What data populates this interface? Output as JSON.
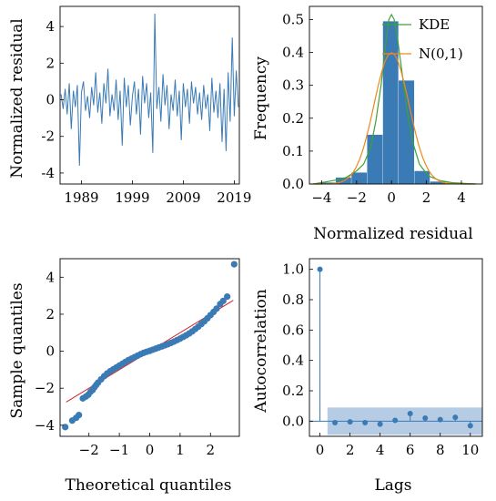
{
  "chart_data": [
    {
      "type": "line",
      "panel": "residual-timeseries",
      "ylabel": "Normalized residual",
      "xlabel": "",
      "xticks": [
        "1989",
        "1999",
        "2009",
        "2019"
      ],
      "xtick_values": [
        1989,
        1999,
        2009,
        2019
      ],
      "xlim": [
        1984.8,
        2020
      ],
      "yticks": [
        4,
        2,
        0,
        -2,
        -4
      ],
      "ylim": [
        -4.6,
        5.1
      ],
      "color": "#3a7ab5",
      "series": [
        {
          "values": [
            [
              1985.0,
              0.3
            ],
            [
              1985.4,
              -0.5
            ],
            [
              1985.8,
              0.6
            ],
            [
              1986.2,
              -0.8
            ],
            [
              1986.6,
              0.9
            ],
            [
              1987.0,
              -1.6
            ],
            [
              1987.4,
              0.5
            ],
            [
              1987.8,
              -0.4
            ],
            [
              1988.2,
              0.8
            ],
            [
              1988.6,
              -3.6
            ],
            [
              1989.0,
              0.4
            ],
            [
              1989.4,
              1.0
            ],
            [
              1989.8,
              -0.6
            ],
            [
              1990.2,
              0.2
            ],
            [
              1990.6,
              -1.0
            ],
            [
              1991.0,
              0.7
            ],
            [
              1991.4,
              -0.3
            ],
            [
              1991.8,
              1.5
            ],
            [
              1992.2,
              -0.7
            ],
            [
              1992.6,
              0.4
            ],
            [
              1993.0,
              -1.3
            ],
            [
              1993.4,
              0.9
            ],
            [
              1993.8,
              -0.2
            ],
            [
              1994.2,
              1.7
            ],
            [
              1994.6,
              -0.9
            ],
            [
              1995.0,
              0.3
            ],
            [
              1995.4,
              -0.6
            ],
            [
              1995.8,
              1.1
            ],
            [
              1996.2,
              -1.1
            ],
            [
              1996.6,
              0.5
            ],
            [
              1997.0,
              -2.5
            ],
            [
              1997.4,
              1.2
            ],
            [
              1997.8,
              -0.4
            ],
            [
              1998.2,
              0.8
            ],
            [
              1998.6,
              -1.4
            ],
            [
              1999.0,
              0.2
            ],
            [
              1999.4,
              1.0
            ],
            [
              1999.8,
              -0.8
            ],
            [
              2000.2,
              0.6
            ],
            [
              2000.6,
              -1.9
            ],
            [
              2001.0,
              1.3
            ],
            [
              2001.4,
              -0.2
            ],
            [
              2001.8,
              0.9
            ],
            [
              2002.2,
              -1.0
            ],
            [
              2002.6,
              0.4
            ],
            [
              2003.0,
              -2.9
            ],
            [
              2003.4,
              4.7
            ],
            [
              2003.8,
              -0.5
            ],
            [
              2004.2,
              0.7
            ],
            [
              2004.6,
              -1.2
            ],
            [
              2005.0,
              1.4
            ],
            [
              2005.4,
              -0.3
            ],
            [
              2005.8,
              0.8
            ],
            [
              2006.2,
              -1.6
            ],
            [
              2006.6,
              0.3
            ],
            [
              2007.0,
              -0.6
            ],
            [
              2007.4,
              1.1
            ],
            [
              2007.8,
              -0.9
            ],
            [
              2008.2,
              0.5
            ],
            [
              2008.6,
              -2.2
            ],
            [
              2009.0,
              0.9
            ],
            [
              2009.4,
              -0.4
            ],
            [
              2009.8,
              0.6
            ],
            [
              2010.2,
              -1.3
            ],
            [
              2010.6,
              1.0
            ],
            [
              2011.0,
              -0.2
            ],
            [
              2011.4,
              0.7
            ],
            [
              2011.8,
              -0.8
            ],
            [
              2012.2,
              0.4
            ],
            [
              2012.6,
              -1.1
            ],
            [
              2013.0,
              0.8
            ],
            [
              2013.4,
              -0.5
            ],
            [
              2013.8,
              0.3
            ],
            [
              2014.2,
              -1.7
            ],
            [
              2014.6,
              1.2
            ],
            [
              2015.0,
              -0.7
            ],
            [
              2015.4,
              0.5
            ],
            [
              2015.8,
              -1.0
            ],
            [
              2016.2,
              0.9
            ],
            [
              2016.6,
              -2.3
            ],
            [
              2017.0,
              0.6
            ],
            [
              2017.4,
              -2.8
            ],
            [
              2017.8,
              1.5
            ],
            [
              2018.2,
              -1.2
            ],
            [
              2018.6,
              3.4
            ],
            [
              2019.0,
              -0.9
            ],
            [
              2019.4,
              1.6
            ],
            [
              2019.8,
              -0.4
            ]
          ]
        }
      ]
    },
    {
      "type": "bar",
      "panel": "residual-histogram",
      "ylabel": "Frequency",
      "xlabel": "Normalized residual",
      "xticks": [
        "−4",
        "−2",
        "0",
        "2",
        "4"
      ],
      "xtick_values": [
        -4,
        -2,
        0,
        2,
        4
      ],
      "xlim": [
        -4.7,
        5.2
      ],
      "yticks": [
        "0.0",
        "0.1",
        "0.2",
        "0.3",
        "0.4",
        "0.5"
      ],
      "ytick_values": [
        0,
        0.1,
        0.2,
        0.3,
        0.4,
        0.5
      ],
      "ylim": [
        0,
        0.54
      ],
      "bar_color": "#3a7ab5",
      "bins": [
        {
          "x0": -4.1,
          "x1": -3.2,
          "value": 0.005
        },
        {
          "x0": -3.2,
          "x1": -2.3,
          "value": 0.02
        },
        {
          "x0": -2.3,
          "x1": -1.4,
          "value": 0.035
        },
        {
          "x0": -1.4,
          "x1": -0.5,
          "value": 0.15
        },
        {
          "x0": -0.5,
          "x1": 0.4,
          "value": 0.495
        },
        {
          "x0": 0.4,
          "x1": 1.3,
          "value": 0.315
        },
        {
          "x0": 1.3,
          "x1": 2.2,
          "value": 0.04
        },
        {
          "x0": 2.2,
          "x1": 3.1,
          "value": 0.008
        },
        {
          "x0": 3.1,
          "x1": 4.0,
          "value": 0.003
        },
        {
          "x0": 4.0,
          "x1": 4.9,
          "value": 0.002
        }
      ],
      "legend": [
        {
          "name": "KDE",
          "color": "#3aa23a"
        },
        {
          "name": "N(0,1)",
          "color": "#f0871e"
        }
      ],
      "kde_points": [
        [
          -4.5,
          0.0
        ],
        [
          -3.8,
          0.006
        ],
        [
          -3.2,
          0.012
        ],
        [
          -2.6,
          0.02
        ],
        [
          -2.0,
          0.04
        ],
        [
          -1.6,
          0.06
        ],
        [
          -1.2,
          0.11
        ],
        [
          -0.9,
          0.19
        ],
        [
          -0.6,
          0.3
        ],
        [
          -0.35,
          0.42
        ],
        [
          -0.15,
          0.5
        ],
        [
          0.0,
          0.515
        ],
        [
          0.15,
          0.5
        ],
        [
          0.35,
          0.44
        ],
        [
          0.6,
          0.34
        ],
        [
          0.9,
          0.22
        ],
        [
          1.2,
          0.13
        ],
        [
          1.6,
          0.06
        ],
        [
          2.1,
          0.025
        ],
        [
          2.8,
          0.01
        ],
        [
          3.5,
          0.004
        ],
        [
          4.8,
          0.0
        ]
      ],
      "normal_mean": 0,
      "normal_sd": 1
    },
    {
      "type": "scatter",
      "panel": "qq-plot",
      "xlabel": "Theoretical quantiles",
      "ylabel": "Sample quantiles",
      "xticks": [
        "−2",
        "−1",
        "0",
        "1",
        "2"
      ],
      "xtick_values": [
        -2,
        -1,
        0,
        1,
        2
      ],
      "xlim": [
        -2.95,
        2.95
      ],
      "yticks": [
        "4",
        "2",
        "0",
        "−2",
        "−4"
      ],
      "ytick_values": [
        4,
        2,
        0,
        -2,
        -4
      ],
      "ylim": [
        -4.6,
        5.0
      ],
      "point_color": "#3a7ab5",
      "reference_line": {
        "color": "#d62728",
        "x": [
          -2.75,
          2.75
        ],
        "y": [
          -2.75,
          2.75
        ]
      },
      "points": [
        [
          -2.78,
          -4.1
        ],
        [
          -2.55,
          -3.75
        ],
        [
          -2.42,
          -3.6
        ],
        [
          -2.33,
          -3.45
        ],
        [
          -2.2,
          -2.55
        ],
        [
          -2.1,
          -2.45
        ],
        [
          -2.02,
          -2.35
        ],
        [
          -1.95,
          -2.2
        ],
        [
          -1.88,
          -2.1
        ],
        [
          -1.82,
          -1.95
        ],
        [
          -1.76,
          -1.82
        ],
        [
          -1.7,
          -1.7
        ],
        [
          -1.6,
          -1.52
        ],
        [
          -1.5,
          -1.35
        ],
        [
          -1.4,
          -1.2
        ],
        [
          -1.3,
          -1.08
        ],
        [
          -1.2,
          -0.98
        ],
        [
          -1.1,
          -0.88
        ],
        [
          -1.0,
          -0.78
        ],
        [
          -0.9,
          -0.68
        ],
        [
          -0.8,
          -0.58
        ],
        [
          -0.7,
          -0.48
        ],
        [
          -0.6,
          -0.4
        ],
        [
          -0.5,
          -0.32
        ],
        [
          -0.4,
          -0.24
        ],
        [
          -0.3,
          -0.16
        ],
        [
          -0.2,
          -0.09
        ],
        [
          -0.1,
          -0.03
        ],
        [
          0.0,
          0.02
        ],
        [
          0.1,
          0.08
        ],
        [
          0.2,
          0.14
        ],
        [
          0.3,
          0.2
        ],
        [
          0.4,
          0.26
        ],
        [
          0.5,
          0.32
        ],
        [
          0.6,
          0.38
        ],
        [
          0.7,
          0.45
        ],
        [
          0.8,
          0.52
        ],
        [
          0.9,
          0.6
        ],
        [
          1.0,
          0.68
        ],
        [
          1.1,
          0.77
        ],
        [
          1.2,
          0.86
        ],
        [
          1.3,
          0.96
        ],
        [
          1.4,
          1.07
        ],
        [
          1.5,
          1.2
        ],
        [
          1.6,
          1.33
        ],
        [
          1.7,
          1.47
        ],
        [
          1.8,
          1.62
        ],
        [
          1.9,
          1.78
        ],
        [
          2.0,
          1.95
        ],
        [
          2.1,
          2.12
        ],
        [
          2.2,
          2.3
        ],
        [
          2.32,
          2.55
        ],
        [
          2.42,
          2.72
        ],
        [
          2.55,
          2.95
        ],
        [
          2.78,
          4.7
        ]
      ]
    },
    {
      "type": "scatter",
      "panel": "autocorrelation",
      "xlabel": "Lags",
      "ylabel": "Autocorrelation",
      "xticks": [
        "0",
        "2",
        "4",
        "6",
        "8",
        "10"
      ],
      "xtick_values": [
        0,
        2,
        4,
        6,
        8,
        10
      ],
      "xlim": [
        -0.7,
        10.8
      ],
      "yticks": [
        "1.0",
        "0.8",
        "0.6",
        "0.4",
        "0.2",
        "0.0"
      ],
      "ytick_values": [
        1.0,
        0.8,
        0.6,
        0.4,
        0.2,
        0.0
      ],
      "ylim": [
        -0.1,
        1.07
      ],
      "point_color": "#3a7ab5",
      "confidence_band": {
        "low": -0.09,
        "high": 0.09,
        "color": "#a9c3e0",
        "from_lag": 0.5
      },
      "lags": [
        0,
        1,
        2,
        3,
        4,
        5,
        6,
        7,
        8,
        9,
        10
      ],
      "values": [
        1.0,
        -0.01,
        -0.005,
        -0.01,
        -0.02,
        0.005,
        0.05,
        0.02,
        0.01,
        0.025,
        -0.03
      ]
    }
  ]
}
